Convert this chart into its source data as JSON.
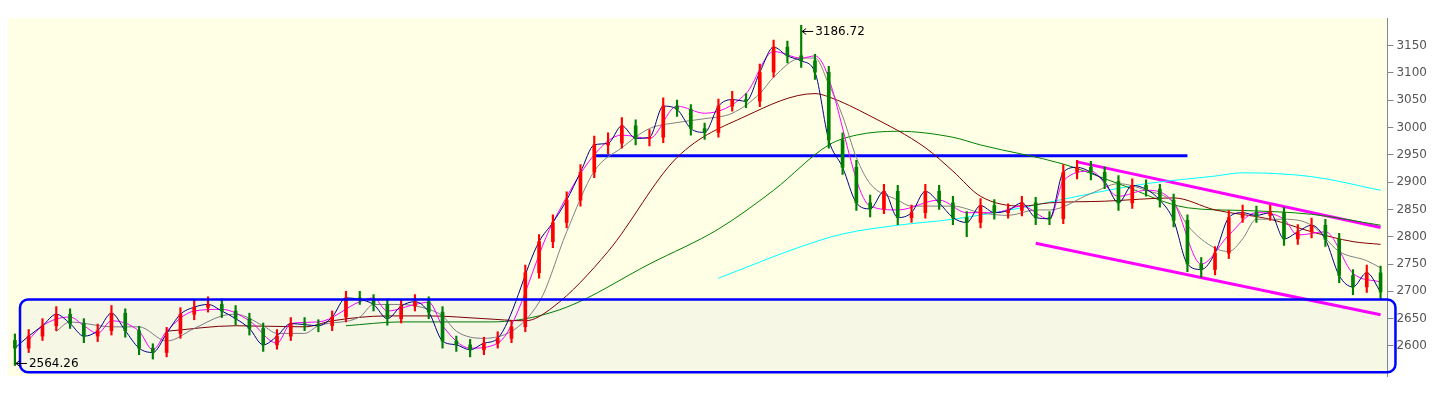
{
  "chart_data": {
    "type": "candlestick",
    "categories": [
      null,
      null,
      null,
      null,
      null,
      null,
      null,
      null,
      null,
      null,
      null,
      null,
      null,
      null,
      null,
      null,
      null,
      null,
      null,
      null,
      null,
      null,
      null,
      null,
      null,
      null,
      null,
      null,
      null,
      null,
      null,
      null,
      null,
      null,
      null,
      null,
      null,
      null,
      null,
      null,
      null,
      null,
      null,
      null,
      null,
      null,
      null,
      null,
      null,
      null,
      null,
      null,
      null,
      null,
      null,
      null,
      null,
      null,
      null,
      null,
      null,
      null,
      null,
      null,
      null,
      null,
      null,
      null,
      null,
      null,
      null,
      null,
      null,
      null,
      null,
      null,
      null,
      null,
      null,
      null,
      null,
      null,
      null,
      null,
      null,
      null,
      null,
      null,
      null,
      null,
      null,
      null,
      null,
      null,
      null,
      null,
      null,
      null,
      null,
      null
    ],
    "ohlc": [
      [
        2610,
        2622,
        2564.26,
        2596
      ],
      [
        2596,
        2630,
        2588,
        2618
      ],
      [
        2618,
        2650,
        2610,
        2637
      ],
      [
        2637,
        2672,
        2628,
        2658
      ],
      [
        2658,
        2668,
        2632,
        2641
      ],
      [
        2641,
        2650,
        2606,
        2618
      ],
      [
        2618,
        2640,
        2608,
        2628
      ],
      [
        2628,
        2674,
        2620,
        2660
      ],
      [
        2660,
        2668,
        2616,
        2628
      ],
      [
        2628,
        2636,
        2584,
        2596
      ],
      [
        2596,
        2604,
        2576,
        2588
      ],
      [
        2588,
        2634,
        2580,
        2623
      ],
      [
        2623,
        2670,
        2614,
        2658
      ],
      [
        2658,
        2684,
        2648,
        2671
      ],
      [
        2671,
        2690,
        2662,
        2676
      ],
      [
        2676,
        2686,
        2652,
        2664
      ],
      [
        2664,
        2674,
        2638,
        2650
      ],
      [
        2650,
        2660,
        2620,
        2632
      ],
      [
        2632,
        2642,
        2590,
        2602
      ],
      [
        2602,
        2630,
        2594,
        2618
      ],
      [
        2618,
        2652,
        2610,
        2641
      ],
      [
        2641,
        2652,
        2628,
        2639
      ],
      [
        2639,
        2648,
        2626,
        2637
      ],
      [
        2637,
        2664,
        2628,
        2653
      ],
      [
        2653,
        2700,
        2644,
        2688
      ],
      [
        2688,
        2700,
        2676,
        2685
      ],
      [
        2685,
        2694,
        2664,
        2676
      ],
      [
        2676,
        2686,
        2638,
        2650
      ],
      [
        2650,
        2684,
        2642,
        2673
      ],
      [
        2673,
        2694,
        2664,
        2681
      ],
      [
        2681,
        2690,
        2650,
        2662
      ],
      [
        2662,
        2672,
        2596,
        2609
      ],
      [
        2609,
        2618,
        2590,
        2602
      ],
      [
        2602,
        2612,
        2580,
        2593
      ],
      [
        2593,
        2616,
        2584,
        2605
      ],
      [
        2605,
        2626,
        2596,
        2614
      ],
      [
        2614,
        2646,
        2606,
        2635
      ],
      [
        2635,
        2748,
        2626,
        2734
      ],
      [
        2734,
        2804,
        2724,
        2791
      ],
      [
        2791,
        2840,
        2780,
        2826
      ],
      [
        2826,
        2882,
        2816,
        2867
      ],
      [
        2867,
        2932,
        2856,
        2918
      ],
      [
        2918,
        2984,
        2908,
        2968
      ],
      [
        2968,
        2990,
        2952,
        2971
      ],
      [
        2971,
        3018,
        2962,
        3003
      ],
      [
        3003,
        3014,
        2968,
        2980
      ],
      [
        2980,
        2996,
        2966,
        2982
      ],
      [
        2982,
        3054,
        2972,
        3039
      ],
      [
        3039,
        3050,
        3020,
        3033
      ],
      [
        3033,
        3042,
        2986,
        2998
      ],
      [
        2998,
        3008,
        2978,
        2991
      ],
      [
        2991,
        3052,
        2982,
        3039
      ],
      [
        3039,
        3066,
        3030,
        3051
      ],
      [
        3051,
        3062,
        3036,
        3048
      ],
      [
        3048,
        3116,
        3038,
        3101
      ],
      [
        3101,
        3160,
        3092,
        3147
      ],
      [
        3147,
        3158,
        3118,
        3131
      ],
      [
        3131,
        3186.72,
        3110,
        3122
      ],
      [
        3122,
        3134,
        3088,
        3101
      ],
      [
        3101,
        3112,
        2962,
        2977
      ],
      [
        2977,
        2990,
        2914,
        2927
      ],
      [
        2927,
        2940,
        2848,
        2862
      ],
      [
        2862,
        2876,
        2836,
        2851
      ],
      [
        2851,
        2896,
        2842,
        2883
      ],
      [
        2883,
        2894,
        2822,
        2835
      ],
      [
        2835,
        2858,
        2826,
        2844
      ],
      [
        2844,
        2896,
        2834,
        2883
      ],
      [
        2883,
        2894,
        2850,
        2862
      ],
      [
        2862,
        2874,
        2822,
        2835
      ],
      [
        2835,
        2846,
        2800,
        2826
      ],
      [
        2826,
        2870,
        2816,
        2857
      ],
      [
        2857,
        2868,
        2832,
        2844
      ],
      [
        2844,
        2860,
        2834,
        2848
      ],
      [
        2848,
        2874,
        2838,
        2862
      ],
      [
        2862,
        2872,
        2822,
        2835
      ],
      [
        2835,
        2846,
        2822,
        2833
      ],
      [
        2833,
        2932,
        2824,
        2918
      ],
      [
        2918,
        2940,
        2906,
        2927
      ],
      [
        2927,
        2938,
        2904,
        2918
      ],
      [
        2918,
        2928,
        2888,
        2901
      ],
      [
        2901,
        2912,
        2848,
        2862
      ],
      [
        2862,
        2906,
        2852,
        2894
      ],
      [
        2894,
        2904,
        2874,
        2887
      ],
      [
        2887,
        2896,
        2854,
        2867
      ],
      [
        2867,
        2878,
        2818,
        2830
      ],
      [
        2830,
        2840,
        2736,
        2750
      ],
      [
        2750,
        2762,
        2726,
        2740
      ],
      [
        2740,
        2782,
        2730,
        2770
      ],
      [
        2770,
        2848,
        2760,
        2835
      ],
      [
        2835,
        2858,
        2826,
        2844
      ],
      [
        2844,
        2856,
        2826,
        2839
      ],
      [
        2839,
        2858,
        2830,
        2844
      ],
      [
        2844,
        2854,
        2784,
        2796
      ],
      [
        2796,
        2822,
        2786,
        2809
      ],
      [
        2809,
        2834,
        2798,
        2821
      ],
      [
        2821,
        2832,
        2782,
        2795
      ],
      [
        2795,
        2806,
        2716,
        2729
      ],
      [
        2729,
        2740,
        2694,
        2708
      ],
      [
        2708,
        2748,
        2698,
        2734
      ],
      [
        2734,
        2746,
        2686,
        2699
      ]
    ],
    "colors": [
      "#008000",
      "#ff0000",
      "#ff0000",
      "#ff0000",
      "#008000",
      "#008000",
      "#ff0000",
      "#ff0000",
      "#008000",
      "#008000",
      "#008000",
      "#ff0000",
      "#ff0000",
      "#ff0000",
      "#ff0000",
      "#008000",
      "#008000",
      "#008000",
      "#008000",
      "#ff0000",
      "#ff0000",
      "#008000",
      "#008000",
      "#ff0000",
      "#ff0000",
      "#008000",
      "#008000",
      "#008000",
      "#ff0000",
      "#ff0000",
      "#008000",
      "#008000",
      "#008000",
      "#008000",
      "#ff0000",
      "#ff0000",
      "#ff0000",
      "#ff0000",
      "#ff0000",
      "#ff0000",
      "#ff0000",
      "#ff0000",
      "#ff0000",
      "#ff0000",
      "#ff0000",
      "#008000",
      "#ff0000",
      "#ff0000",
      "#008000",
      "#008000",
      "#008000",
      "#ff0000",
      "#ff0000",
      "#008000",
      "#ff0000",
      "#ff0000",
      "#008000",
      "#008000",
      "#008000",
      "#008000",
      "#008000",
      "#008000",
      "#008000",
      "#ff0000",
      "#008000",
      "#ff0000",
      "#ff0000",
      "#008000",
      "#008000",
      "#008000",
      "#ff0000",
      "#008000",
      "#ff0000",
      "#ff0000",
      "#008000",
      "#008000",
      "#ff0000",
      "#ff0000",
      "#008000",
      "#008000",
      "#008000",
      "#ff0000",
      "#008000",
      "#008000",
      "#008000",
      "#008000",
      "#008000",
      "#ff0000",
      "#ff0000",
      "#ff0000",
      "#008000",
      "#ff0000",
      "#008000",
      "#ff0000",
      "#ff0000",
      "#008000",
      "#008000",
      "#008000",
      "#ff0000",
      "#008000"
    ],
    "series": [
      {
        "type": "line",
        "color": "#000080",
        "values": [
          2596,
          2618,
          2637,
          2658,
          2641,
          2618,
          2628,
          2660,
          2628,
          2596,
          2588,
          2623,
          2658,
          2671,
          2676,
          2664,
          2650,
          2632,
          2602,
          2618,
          2641,
          2639,
          2637,
          2653,
          2688,
          2685,
          2676,
          2650,
          2673,
          2681,
          2662,
          2609,
          2602,
          2593,
          2605,
          2614,
          null,
          null,
          2791,
          2826,
          2867,
          2918,
          2968,
          2971,
          3003,
          2980,
          2982,
          3039,
          3033,
          2998,
          2991,
          3039,
          3051,
          3048,
          3101,
          3147,
          3131,
          3122,
          3101,
          2977,
          2927,
          2862,
          2851,
          2883,
          2835,
          2844,
          2883,
          2862,
          2835,
          2826,
          2857,
          2844,
          2848,
          2862,
          2835,
          2833,
          2918,
          2927,
          2918,
          2901,
          2862,
          2894,
          2887,
          2867,
          2830,
          2750,
          2740,
          2770,
          2835,
          2844,
          2839,
          2844,
          2796,
          2809,
          2821,
          2795,
          2729,
          2708,
          2734,
          2699
        ]
      },
      {
        "type": "line",
        "color": "#ff00ff",
        "values": [
          null,
          2611,
          2637,
          null,
          2653,
          2637,
          2623,
          2646,
          null,
          2627,
          2593,
          2627,
          null,
          2664,
          null,
          2667,
          null,
          2646,
          null,
          2605,
          2641,
          null,
          2644,
          null,
          null,
          2681,
          2688,
          2664,
          null,
          2676,
          2680,
          2637,
          null,
          2596,
          null,
          2605,
          null,
          null,
          null,
          2826,
          null,
          null,
          2950,
          null,
          2986,
          null,
          2980,
          null,
          3039,
          null,
          3026,
          null,
          null,
          3062,
          null,
          3139,
          null,
          3127,
          3131,
          null,
          null,
          null,
          2856,
          null,
          2849,
          null,
          null,
          2867,
          null,
          2844,
          null,
          2844,
          null,
          2856,
          null,
          2832,
          2902,
          null,
          2920,
          null,
          2874,
          null,
          2885,
          null,
          2862,
          null,
          2750,
          null,
          2803,
          null,
          2844,
          null,
          2832,
          2803,
          null,
          2809,
          null,
          2733,
          null,
          2717
        ]
      },
      {
        "type": "line",
        "color": "#808080",
        "values": [
          null,
          null,
          null,
          2627,
          2644,
          null,
          null,
          2635,
          null,
          2635,
          null,
          2609,
          null,
          2632,
          null,
          2655,
          2658,
          null,
          2637,
          2623,
          null,
          2623,
          2637,
          null,
          null,
          2653,
          2676,
          null,
          2676,
          null,
          2667,
          2655,
          2627,
          null,
          2614,
          null,
          null,
          null,
          2680,
          null,
          2809,
          null,
          2920,
          null,
          2963,
          null,
          2998,
          null,
          3009,
          null,
          3016,
          null,
          3026,
          null,
          3062,
          3092,
          null,
          3127,
          3127,
          3079,
          3021,
          2945,
          2897,
          null,
          2867,
          2856,
          null,
          null,
          2856,
          null,
          2844,
          null,
          2839,
          null,
          2849,
          2849,
          null,
          null,
          2879,
          null,
          2897,
          null,
          2885,
          null,
          2862,
          2821,
          null,
          2779,
          2773,
          2796,
          2832,
          null,
          2832,
          null,
          2821,
          null,
          2773,
          null,
          2756,
          2743
        ]
      },
      {
        "type": "line",
        "color": "#800000",
        "values": [
          null,
          null,
          null,
          null,
          null,
          null,
          null,
          null,
          null,
          null,
          null,
          2627,
          null,
          null,
          null,
          null,
          2637,
          null,
          null,
          null,
          null,
          2635,
          null,
          2646,
          null,
          null,
          null,
          2655,
          null,
          null,
          2655,
          null,
          null,
          null,
          2650,
          null,
          null,
          2646,
          null,
          2671,
          null,
          null,
          null,
          2773,
          null,
          null,
          null,
          null,
          2945,
          null,
          null,
          null,
          null,
          3021,
          null,
          null,
          null,
          null,
          3062,
          3056,
          null,
          null,
          3021,
          null,
          null,
          null,
          2963,
          null,
          2920,
          null,
          2874,
          null,
          null,
          2856,
          null,
          2862,
          null,
          null,
          null,
          2865,
          null,
          null,
          null,
          null,
          2871,
          null,
          null,
          2849,
          null,
          null,
          null,
          2832,
          null,
          null,
          2809,
          null,
          null,
          2791,
          null,
          2786
        ]
      },
      {
        "type": "line",
        "color": "#008000",
        "values": [
          null,
          null,
          null,
          null,
          null,
          null,
          null,
          null,
          null,
          null,
          null,
          null,
          null,
          null,
          null,
          null,
          null,
          null,
          null,
          null,
          null,
          null,
          null,
          null,
          2637,
          null,
          null,
          null,
          2644,
          null,
          null,
          null,
          null,
          null,
          2644,
          null,
          2646,
          null,
          null,
          null,
          2671,
          null,
          null,
          null,
          null,
          null,
          2750,
          null,
          null,
          null,
          null,
          2814,
          null,
          null,
          null,
          2885,
          null,
          null,
          null,
          2968,
          null,
          2986,
          null,
          null,
          2993,
          null,
          null,
          null,
          2982,
          null,
          2968,
          null,
          null,
          null,
          null,
          null,
          2933,
          null,
          null,
          null,
          2897,
          null,
          null,
          null,
          null,
          2853,
          null,
          null,
          null,
          2848,
          null,
          null,
          null,
          null,
          2841,
          null,
          null,
          null,
          null,
          2821
        ]
      },
      {
        "type": "line",
        "color": "#00ffff",
        "values": [
          null,
          null,
          null,
          null,
          null,
          null,
          null,
          null,
          null,
          null,
          null,
          null,
          null,
          null,
          null,
          null,
          null,
          null,
          null,
          null,
          null,
          null,
          null,
          null,
          null,
          null,
          null,
          null,
          null,
          null,
          null,
          null,
          null,
          null,
          null,
          null,
          null,
          null,
          null,
          null,
          null,
          null,
          null,
          null,
          null,
          null,
          null,
          null,
          null,
          null,
          null,
          2724,
          null,
          null,
          null,
          null,
          null,
          2782,
          null,
          null,
          2805,
          null,
          null,
          null,
          2821,
          null,
          null,
          null,
          2832,
          null,
          null,
          null,
          null,
          2853,
          null,
          null,
          null,
          null,
          2879,
          null,
          null,
          null,
          2897,
          null,
          null,
          null,
          null,
          2911,
          null,
          2917,
          null,
          null,
          null,
          null,
          2910,
          null,
          null,
          null,
          null,
          2885
        ]
      },
      {
        "type": "line",
        "color": "#0000ff",
        "values": [
          null,
          null,
          null,
          null,
          null,
          null,
          null,
          null,
          null,
          null,
          null,
          null,
          null,
          null,
          null,
          null,
          null,
          null,
          null,
          null,
          null,
          null,
          null,
          null,
          null,
          null,
          null,
          null,
          null,
          null,
          null,
          null,
          null,
          null,
          null,
          null,
          null,
          null,
          null,
          null,
          null,
          null,
          2948,
          null,
          null,
          null,
          null,
          null,
          null,
          null,
          null,
          null,
          null,
          null,
          null,
          null,
          null,
          null,
          null,
          null,
          null,
          null,
          null,
          null,
          null,
          null,
          null,
          null,
          null,
          null,
          null,
          null,
          null,
          null,
          null,
          null,
          null,
          null,
          null,
          null,
          null,
          null,
          null,
          null,
          null,
          2948,
          null,
          null,
          null,
          null,
          null,
          null,
          null,
          null,
          null,
          null,
          null,
          null,
          null,
          null
        ]
      },
      {
        "type": "line",
        "color": "#ff00ff",
        "values": [
          null,
          null,
          null,
          null,
          null,
          null,
          null,
          null,
          null,
          null,
          null,
          null,
          null,
          null,
          null,
          null,
          null,
          null,
          null,
          null,
          null,
          null,
          null,
          null,
          null,
          null,
          null,
          null,
          null,
          null,
          null,
          null,
          null,
          null,
          null,
          null,
          null,
          null,
          null,
          null,
          null,
          null,
          null,
          null,
          null,
          null,
          null,
          null,
          null,
          null,
          null,
          null,
          null,
          null,
          null,
          null,
          null,
          null,
          null,
          null,
          null,
          null,
          null,
          null,
          null,
          null,
          null,
          null,
          null,
          null,
          null,
          null,
          null,
          null,
          null,
          null,
          null,
          2937,
          null,
          null,
          null,
          null,
          null,
          null,
          null,
          null,
          null,
          null,
          null,
          null,
          null,
          null,
          null,
          null,
          null,
          null,
          null,
          null,
          null,
          2817
        ]
      },
      {
        "type": "line",
        "color": "#ff00ff",
        "values": [
          null,
          null,
          null,
          null,
          null,
          null,
          null,
          null,
          null,
          null,
          null,
          null,
          null,
          null,
          null,
          null,
          null,
          null,
          null,
          null,
          null,
          null,
          null,
          null,
          null,
          null,
          null,
          null,
          null,
          null,
          null,
          null,
          null,
          null,
          null,
          null,
          null,
          null,
          null,
          null,
          null,
          null,
          null,
          null,
          null,
          null,
          null,
          null,
          null,
          null,
          null,
          null,
          null,
          null,
          null,
          null,
          null,
          null,
          null,
          null,
          null,
          null,
          null,
          null,
          null,
          null,
          null,
          null,
          null,
          null,
          null,
          null,
          null,
          null,
          2788,
          null,
          null,
          null,
          null,
          null,
          null,
          null,
          null,
          null,
          null,
          null,
          null,
          null,
          null,
          null,
          null,
          null,
          null,
          null,
          null,
          null,
          null,
          null,
          null,
          2657
        ]
      }
    ],
    "bands": [
      {
        "axis": "y",
        "from": 2552,
        "to": 2685,
        "color": "#0000ff"
      }
    ],
    "annotations": [
      "3186.72",
      "2564.26"
    ],
    "ylim": [
      2545,
      3200
    ],
    "yticks": [
      2600,
      2650,
      2700,
      2750,
      2800,
      2850,
      2900,
      2950,
      3000,
      3050,
      3100,
      3150
    ]
  }
}
